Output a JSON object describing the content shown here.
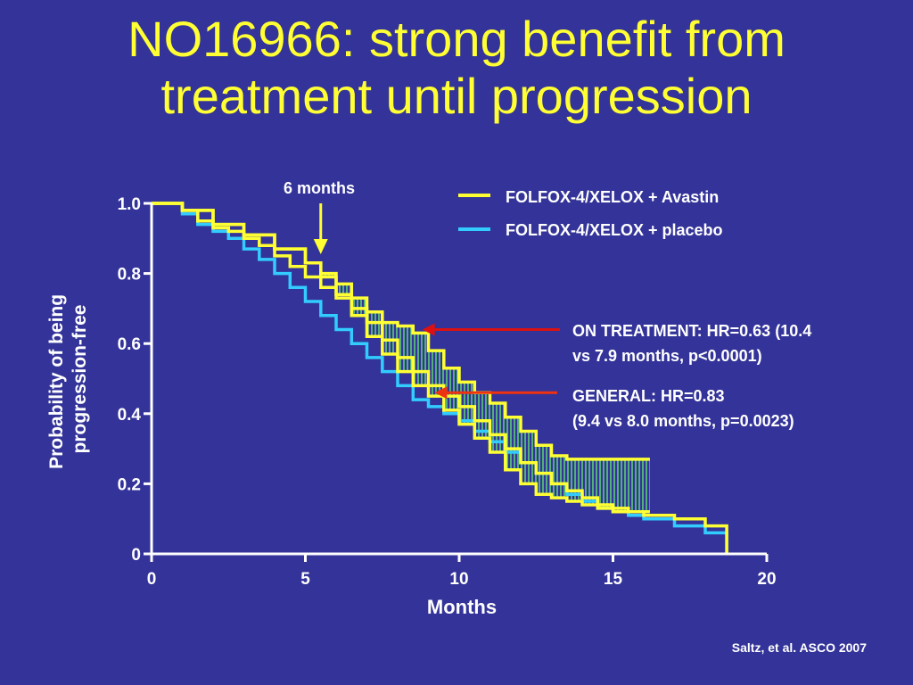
{
  "title": {
    "line1": "NO16966: strong benefit from",
    "line2": "treatment until progression"
  },
  "citation": "Saltz, et al. ASCO 2007",
  "colors": {
    "background": "#333399",
    "title": "#ffff33",
    "avastin": "#ffff33",
    "placebo": "#33ccff",
    "hatch": "#66ff66",
    "arrow_on_treatment": "#dd1111",
    "arrow_general": "#ee3311",
    "six_month_arrow": "#ffff33"
  },
  "chart_data": {
    "type": "line",
    "xlabel": "Months",
    "ylabel": [
      "Probability of being",
      "progression-free"
    ],
    "xlim": [
      0,
      20
    ],
    "ylim": [
      0,
      1.0
    ],
    "xticks": [
      "0",
      "5",
      "10",
      "15",
      "20"
    ],
    "yticks": [
      "0",
      "0.2",
      "0.4",
      "0.6",
      "0.8",
      "1.0"
    ],
    "legend_placement": "top-right",
    "grid": false,
    "series": [
      {
        "name": "FOLFOX-4/XELOX + Avastin",
        "color": "#ffff33",
        "x": [
          0,
          1,
          1.5,
          2,
          2.5,
          3,
          3.5,
          4,
          4.5,
          5,
          5.5,
          6,
          6.5,
          7,
          7.5,
          8,
          8.5,
          9,
          9.5,
          10,
          10.5,
          11,
          11.5,
          12,
          12.5,
          13,
          13.5,
          14,
          14.5,
          15,
          15.5,
          16,
          17,
          18,
          18.7
        ],
        "y": [
          1.0,
          0.98,
          0.95,
          0.93,
          0.92,
          0.9,
          0.88,
          0.85,
          0.82,
          0.79,
          0.76,
          0.73,
          0.7,
          0.66,
          0.61,
          0.56,
          0.52,
          0.48,
          0.45,
          0.42,
          0.38,
          0.34,
          0.3,
          0.26,
          0.23,
          0.2,
          0.18,
          0.16,
          0.14,
          0.13,
          0.12,
          0.11,
          0.1,
          0.08,
          0.0
        ]
      },
      {
        "name": "FOLFOX-4/XELOX + placebo",
        "color": "#33ccff",
        "x": [
          0,
          1,
          1.5,
          2,
          2.5,
          3,
          3.5,
          4,
          4.5,
          5,
          5.5,
          6,
          6.5,
          7,
          7.5,
          8,
          8.5,
          9,
          9.5,
          10,
          10.5,
          11,
          11.5,
          12,
          12.5,
          13,
          13.5,
          14,
          14.5,
          15,
          15.5,
          16,
          17,
          18,
          18.7
        ],
        "y": [
          1.0,
          0.97,
          0.94,
          0.92,
          0.9,
          0.87,
          0.84,
          0.8,
          0.76,
          0.72,
          0.68,
          0.64,
          0.6,
          0.56,
          0.52,
          0.48,
          0.44,
          0.42,
          0.4,
          0.38,
          0.35,
          0.32,
          0.29,
          0.26,
          0.23,
          0.2,
          0.17,
          0.15,
          0.13,
          0.12,
          0.11,
          0.1,
          0.08,
          0.06,
          0.0
        ]
      },
      {
        "name": "On treatment (Avastin)",
        "color": "#ffff33",
        "x": [
          0,
          1,
          2,
          3,
          4,
          5,
          5.5,
          6,
          6.5,
          7,
          7.5,
          8,
          8.5,
          9,
          9.5,
          10,
          10.5,
          11,
          11.5,
          12,
          12.5,
          13,
          13.5,
          14,
          14.5,
          15,
          15.5,
          16.2
        ],
        "y": [
          1.0,
          0.98,
          0.94,
          0.91,
          0.87,
          0.83,
          0.8,
          0.77,
          0.73,
          0.69,
          0.66,
          0.65,
          0.63,
          0.58,
          0.53,
          0.49,
          0.46,
          0.43,
          0.39,
          0.35,
          0.31,
          0.28,
          0.27,
          0.27,
          0.27,
          0.27,
          0.27,
          0.27
        ]
      },
      {
        "name": "On treatment (placebo)",
        "color": "#ffff33",
        "x": [
          0,
          1,
          2,
          3,
          4,
          5,
          5.5,
          6,
          6.5,
          7,
          7.5,
          8,
          8.5,
          9,
          9.5,
          10,
          10.5,
          11,
          11.5,
          12,
          12.5,
          13,
          13.5,
          14,
          14.5,
          15,
          15.5,
          16.2
        ],
        "y": [
          1.0,
          0.98,
          0.94,
          0.91,
          0.87,
          0.83,
          0.79,
          0.74,
          0.68,
          0.62,
          0.57,
          0.52,
          0.48,
          0.45,
          0.41,
          0.37,
          0.33,
          0.29,
          0.24,
          0.2,
          0.17,
          0.16,
          0.15,
          0.14,
          0.13,
          0.12,
          0.12,
          0.12
        ]
      }
    ],
    "annotations": {
      "six_months": {
        "label": "6 months",
        "x": 5.5
      },
      "on_treatment": {
        "line1": "ON TREATMENT: HR=0.63 (10.4",
        "line2": "vs 7.9 months, p<0.0001)",
        "arrow_target": [
          8.8,
          0.64
        ]
      },
      "general": {
        "line1": "GENERAL: HR=0.83",
        "line2": "(9.4 vs 8.0 months, p=0.0023)",
        "arrow_target": [
          9.2,
          0.46
        ]
      }
    }
  }
}
